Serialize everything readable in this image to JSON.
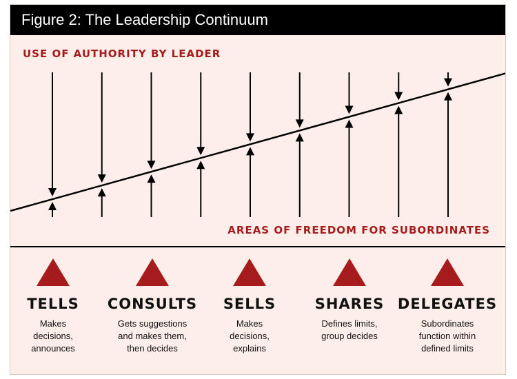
{
  "figure": {
    "title": "Figure 2: The Leadership Continuum",
    "authority_label": "USE OF AUTHORITY BY LEADER",
    "freedom_label": "AREAS OF FREEDOM FOR SUBORDINATES",
    "colors": {
      "accent": "#a61c1c",
      "background": "#fdeeea",
      "title_bar": "#000000",
      "line": "#000000"
    },
    "arrow_count": 9
  },
  "behaviors": [
    {
      "name": "TELLS",
      "description": [
        "Makes",
        "decisions,",
        "announces"
      ]
    },
    {
      "name": "CONSULTS",
      "description": [
        "Gets suggestions",
        "and makes them,",
        "then decides"
      ]
    },
    {
      "name": "SELLS",
      "description": [
        "Makes",
        "decisions,",
        "explains"
      ]
    },
    {
      "name": "SHARES",
      "description": [
        "Defines limits,",
        "group decides"
      ]
    },
    {
      "name": "DELEGATES",
      "description": [
        "Subordinates",
        "function within",
        "defined limits"
      ]
    }
  ]
}
